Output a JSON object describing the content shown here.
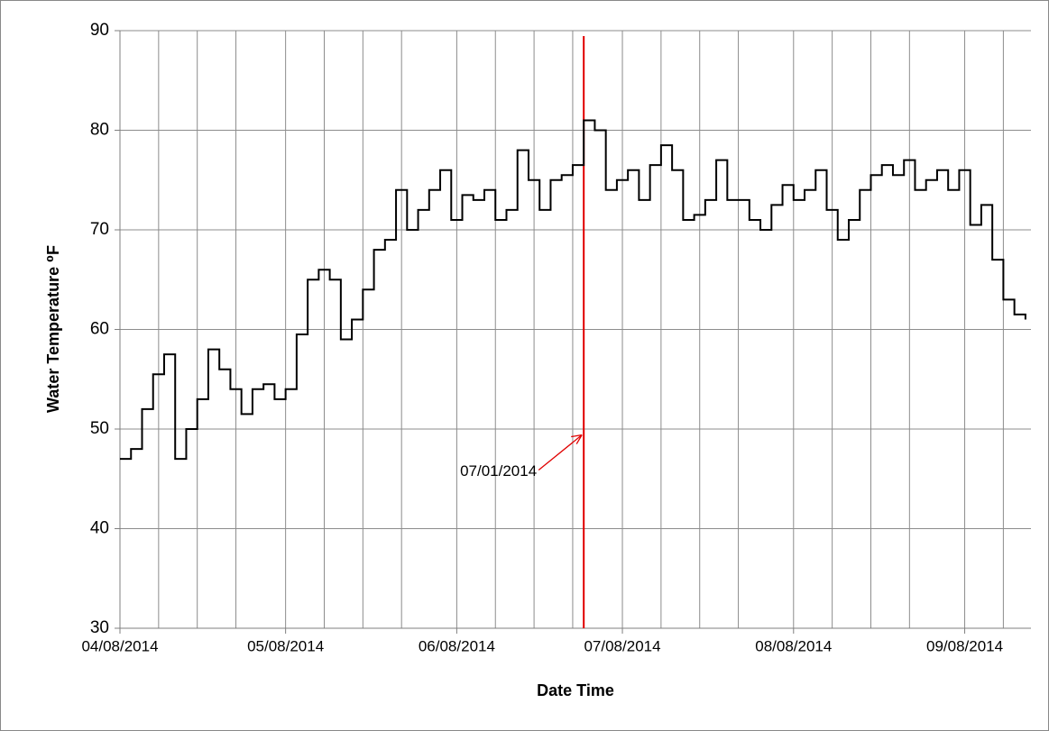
{
  "chart_data": {
    "type": "line",
    "step": true,
    "x_label": "Date Time",
    "y_label": "Water Temperature ⁰F",
    "xlim": [
      "04/08/2014",
      "09/20/2014"
    ],
    "xticks": [
      "04/08/2014",
      "05/08/2014",
      "06/08/2014",
      "07/08/2014",
      "08/08/2014",
      "09/08/2014"
    ],
    "x_minor_grid": [
      "04/15/2014",
      "04/22/2014",
      "04/29/2014",
      "05/15/2014",
      "05/22/2014",
      "05/29/2014",
      "06/15/2014",
      "06/22/2014",
      "06/29/2014",
      "07/15/2014",
      "07/22/2014",
      "07/29/2014",
      "08/15/2014",
      "08/22/2014",
      "08/29/2014",
      "09/15/2014"
    ],
    "ylim": [
      30,
      90
    ],
    "yticks": [
      30,
      40,
      50,
      60,
      70,
      80,
      90
    ],
    "grid": true,
    "series": [
      {
        "color": "#000000",
        "x": [
          "04/08/2014",
          "04/10/2014",
          "04/12/2014",
          "04/14/2014",
          "04/16/2014",
          "04/18/2014",
          "04/20/2014",
          "04/22/2014",
          "04/24/2014",
          "04/26/2014",
          "04/28/2014",
          "04/30/2014",
          "05/02/2014",
          "05/04/2014",
          "05/06/2014",
          "05/08/2014",
          "05/10/2014",
          "05/12/2014",
          "05/14/2014",
          "05/16/2014",
          "05/18/2014",
          "05/20/2014",
          "05/22/2014",
          "05/24/2014",
          "05/26/2014",
          "05/28/2014",
          "05/30/2014",
          "06/01/2014",
          "06/03/2014",
          "06/05/2014",
          "06/07/2014",
          "06/09/2014",
          "06/11/2014",
          "06/13/2014",
          "06/15/2014",
          "06/17/2014",
          "06/19/2014",
          "06/21/2014",
          "06/23/2014",
          "06/25/2014",
          "06/27/2014",
          "06/29/2014",
          "07/01/2014",
          "07/03/2014",
          "07/05/2014",
          "07/07/2014",
          "07/09/2014",
          "07/11/2014",
          "07/13/2014",
          "07/15/2014",
          "07/17/2014",
          "07/19/2014",
          "07/21/2014",
          "07/23/2014",
          "07/25/2014",
          "07/27/2014",
          "07/29/2014",
          "07/31/2014",
          "08/02/2014",
          "08/04/2014",
          "08/06/2014",
          "08/08/2014",
          "08/10/2014",
          "08/12/2014",
          "08/14/2014",
          "08/16/2014",
          "08/18/2014",
          "08/20/2014",
          "08/22/2014",
          "08/24/2014",
          "08/26/2014",
          "08/28/2014",
          "08/30/2014",
          "09/01/2014",
          "09/03/2014",
          "09/05/2014",
          "09/07/2014",
          "09/09/2014",
          "09/11/2014",
          "09/13/2014",
          "09/15/2014",
          "09/17/2014",
          "09/19/2014"
        ],
        "values": [
          47,
          48,
          52,
          55.5,
          57.5,
          47,
          50,
          53,
          58,
          56,
          54,
          51.5,
          54,
          54.5,
          53,
          54,
          59.5,
          65,
          66,
          65,
          59,
          61,
          64,
          68,
          69,
          74,
          70,
          72,
          74,
          76,
          71,
          73.5,
          73,
          74,
          71,
          72,
          78,
          75,
          72,
          75,
          75.5,
          76.5,
          81,
          80,
          74,
          75,
          76,
          73,
          76.5,
          78.5,
          76,
          71,
          71.5,
          73,
          77,
          73,
          73,
          71,
          70,
          72.5,
          74.5,
          73,
          74,
          76,
          72,
          69,
          71,
          74,
          75.5,
          76.5,
          75.5,
          77,
          74,
          75,
          76,
          74,
          76,
          70.5,
          72.5,
          67,
          63,
          61.5,
          61
        ]
      }
    ],
    "annotations": [
      {
        "text": "07/01/2014",
        "x": "07/01/2014",
        "y": 49.5,
        "color": "#e00000"
      }
    ]
  }
}
